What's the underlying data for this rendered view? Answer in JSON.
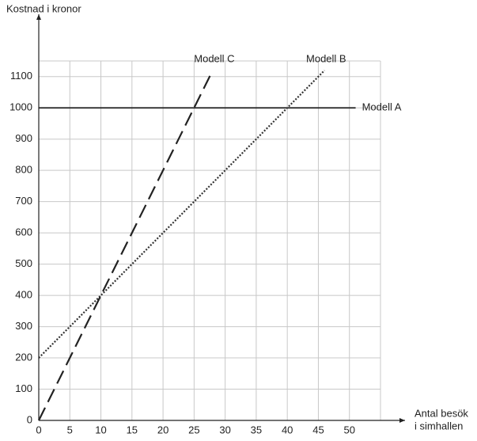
{
  "chart_data": {
    "type": "line",
    "y_label": "Kostnad i kronor",
    "x_label": [
      "Antal besök",
      "i simhallen"
    ],
    "xlim": [
      0,
      55
    ],
    "ylim": [
      0,
      1150
    ],
    "xticks": [
      0,
      5,
      10,
      15,
      20,
      25,
      30,
      35,
      40,
      45,
      50
    ],
    "yticks": [
      0,
      100,
      200,
      300,
      400,
      500,
      600,
      700,
      800,
      900,
      1000,
      1100
    ],
    "grid": true,
    "series": [
      {
        "name": "Modell A",
        "color": "#222222",
        "style": "solid",
        "x": [
          0,
          51
        ],
        "values": [
          1000,
          1000
        ]
      },
      {
        "name": "Modell B",
        "color": "#333333",
        "style": "dotted",
        "x": [
          0,
          46
        ],
        "values": [
          200,
          1120
        ]
      },
      {
        "name": "Modell C",
        "color": "#222222",
        "style": "dashed",
        "x": [
          0,
          28
        ],
        "values": [
          0,
          1120
        ]
      }
    ]
  }
}
